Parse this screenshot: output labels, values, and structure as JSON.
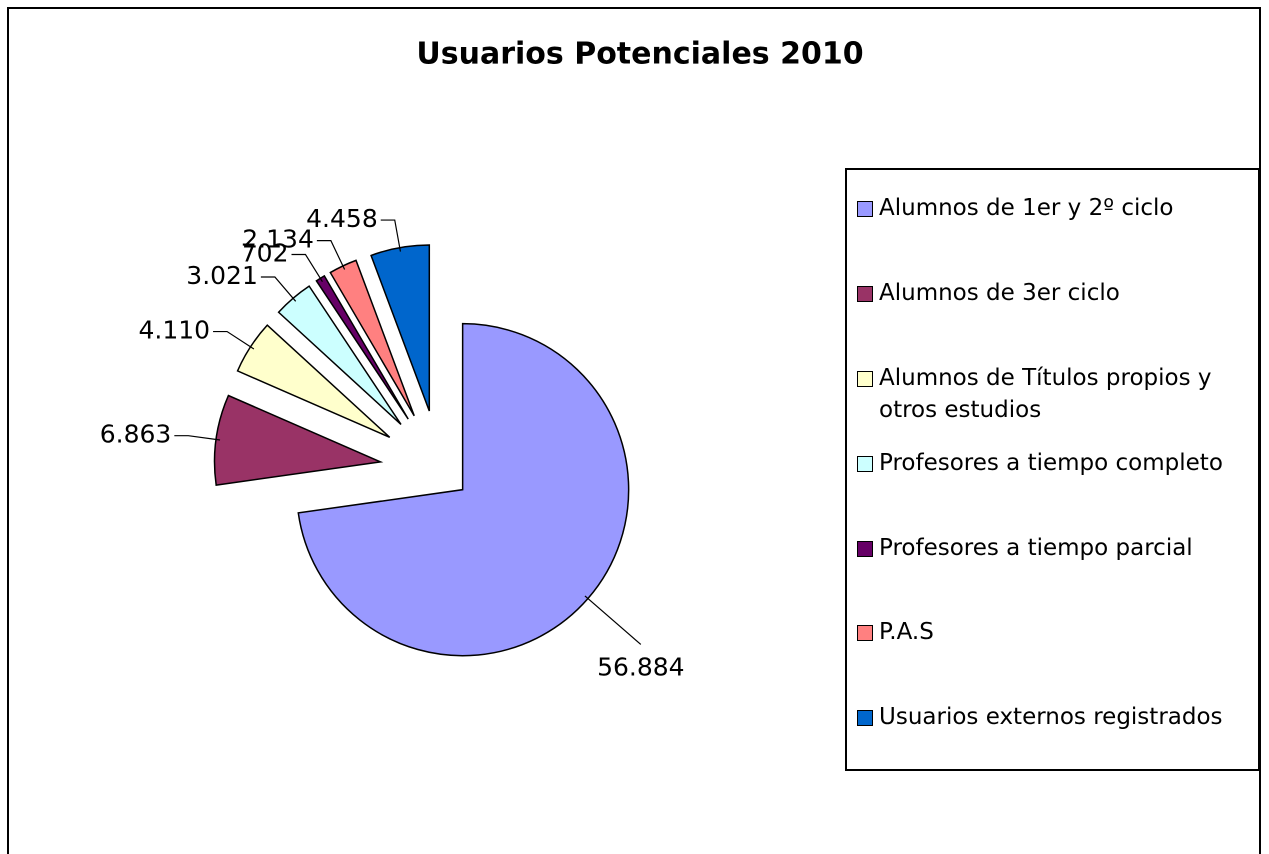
{
  "chart_data": {
    "type": "pie",
    "title": "Usuarios Potenciales 2010",
    "categories": [
      "Alumnos de 1er y 2º ciclo",
      "Alumnos de 3er ciclo",
      "Alumnos de Títulos propios y otros estudios",
      "Profesores a tiempo completo",
      "Profesores a tiempo parcial",
      "P.A.S",
      "Usuarios externos registrados"
    ],
    "values": [
      56884,
      6863,
      4110,
      3021,
      702,
      2134,
      4458
    ],
    "value_labels": [
      "56.884",
      "6.863",
      "4.110",
      "3.021",
      "702",
      "2.134",
      "4.458"
    ],
    "colors": [
      "#9999ff",
      "#993366",
      "#ffffcc",
      "#ccffff",
      "#660066",
      "#ff8080",
      "#0066cc"
    ],
    "legend": "right"
  }
}
